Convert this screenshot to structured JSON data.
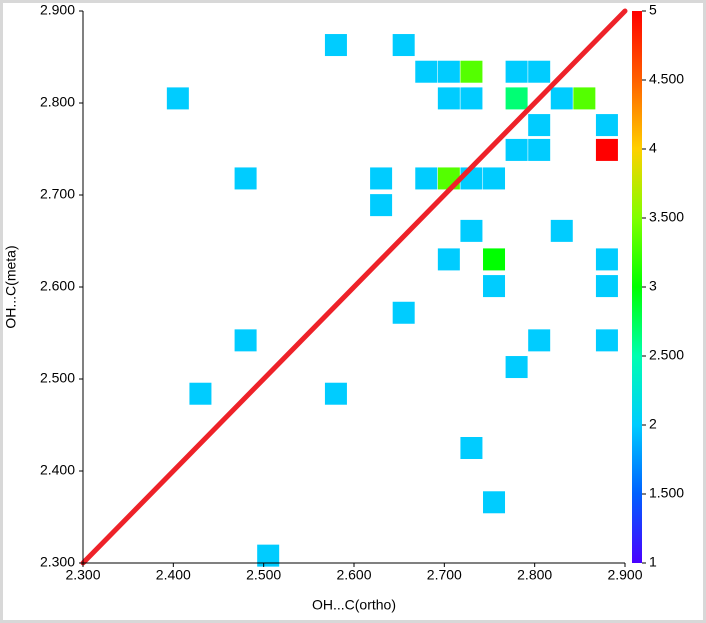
{
  "chart_data": {
    "type": "heatmap",
    "x_label": "OH...C(ortho)",
    "y_label": "OH...C(meta)",
    "xlim": [
      2.3,
      2.9
    ],
    "ylim": [
      2.3,
      2.9
    ],
    "xticks": [
      {
        "value": 2.3,
        "label": "2.300"
      },
      {
        "value": 2.4,
        "label": "2.400"
      },
      {
        "value": 2.5,
        "label": "2.500"
      },
      {
        "value": 2.6,
        "label": "2.600"
      },
      {
        "value": 2.7,
        "label": "2.700"
      },
      {
        "value": 2.8,
        "label": "2.800"
      },
      {
        "value": 2.9,
        "label": "2.900"
      }
    ],
    "yticks": [
      {
        "value": 2.3,
        "label": "2.300"
      },
      {
        "value": 2.4,
        "label": "2.400"
      },
      {
        "value": 2.5,
        "label": "2.500"
      },
      {
        "value": 2.6,
        "label": "2.600"
      },
      {
        "value": 2.7,
        "label": "2.700"
      },
      {
        "value": 2.8,
        "label": "2.800"
      },
      {
        "value": 2.9,
        "label": "2.900"
      }
    ],
    "x": [
      2.58,
      2.655,
      2.68,
      2.705,
      2.73,
      2.78,
      2.805,
      2.405,
      2.705,
      2.73,
      2.78,
      2.83,
      2.855,
      2.805,
      2.88,
      2.78,
      2.805,
      2.88,
      2.48,
      2.63,
      2.68,
      2.705,
      2.73,
      2.755,
      2.63,
      2.73,
      2.83,
      2.705,
      2.755,
      2.88,
      2.755,
      2.88,
      2.655,
      2.48,
      2.805,
      2.88,
      2.78,
      2.43,
      2.58,
      2.73,
      2.755,
      2.505
    ],
    "y": [
      2.863,
      2.863,
      2.834,
      2.834,
      2.834,
      2.834,
      2.834,
      2.805,
      2.805,
      2.805,
      2.805,
      2.805,
      2.805,
      2.776,
      2.776,
      2.749,
      2.749,
      2.749,
      2.718,
      2.718,
      2.718,
      2.718,
      2.718,
      2.718,
      2.689,
      2.661,
      2.661,
      2.63,
      2.63,
      2.63,
      2.601,
      2.601,
      2.572,
      2.542,
      2.542,
      2.542,
      2.513,
      2.484,
      2.484,
      2.425,
      2.366,
      2.308
    ],
    "values": [
      2,
      2,
      2,
      2,
      3.33,
      2,
      2,
      2,
      2,
      2,
      2.67,
      2,
      3.33,
      2,
      2,
      2,
      2,
      5,
      2,
      2,
      2,
      3.33,
      2,
      2,
      2,
      2,
      2,
      2,
      3,
      2,
      2,
      2,
      2,
      2,
      2,
      2,
      2,
      2,
      2,
      2,
      2,
      2
    ],
    "clim": [
      1,
      5
    ],
    "cticks": [
      1,
      {
        "value": 1.5,
        "label": "1.500"
      },
      2,
      {
        "value": 2.5,
        "label": "2.500"
      },
      3,
      {
        "value": 3.5,
        "label": "3.500"
      },
      4,
      {
        "value": 4.5,
        "label": "4.500"
      },
      5
    ],
    "colormap": [
      "#4a00ff",
      "#0060ff",
      "#00ccff",
      "#00ffb0",
      "#00ff00",
      "#80ff00",
      "#ffd000",
      "#ff6000",
      "#ff0000"
    ],
    "reference_line": {
      "color": "#ee2229"
    }
  }
}
